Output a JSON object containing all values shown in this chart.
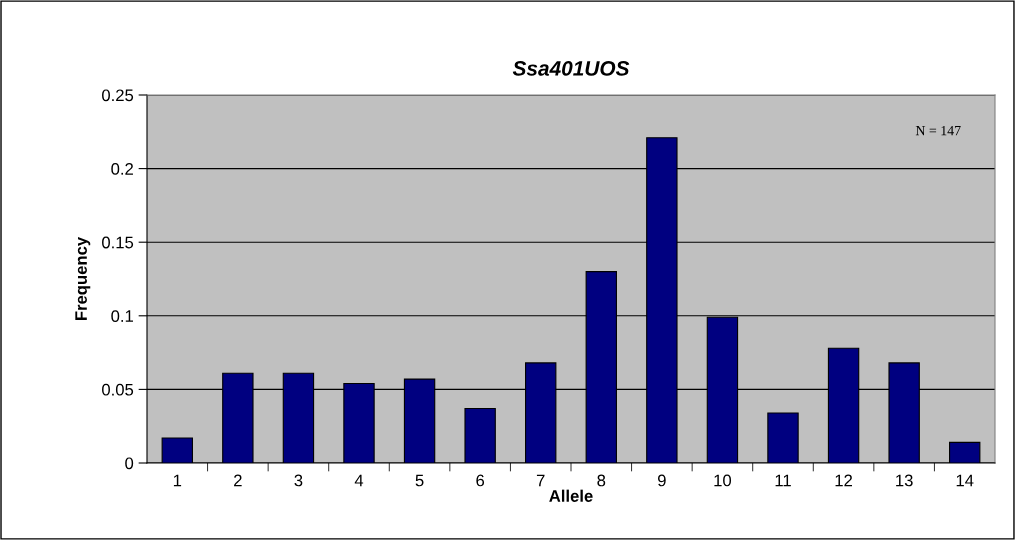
{
  "chart_data": {
    "type": "bar",
    "title": "Ssa401UOS",
    "xlabel": "Allele",
    "ylabel": "Frequency",
    "categories": [
      "1",
      "2",
      "3",
      "4",
      "5",
      "6",
      "7",
      "8",
      "9",
      "10",
      "11",
      "12",
      "13",
      "14"
    ],
    "values": [
      0.017,
      0.061,
      0.061,
      0.054,
      0.057,
      0.037,
      0.068,
      0.13,
      0.221,
      0.099,
      0.034,
      0.078,
      0.068,
      0.014
    ],
    "color": "#000080",
    "ylim": [
      0,
      0.25
    ],
    "yticks": [
      {
        "value": 0,
        "label": "0"
      },
      0.05,
      0.1,
      0.15,
      0.2,
      0.25
    ],
    "grid": "y",
    "legend": false,
    "annotations": [
      "N = 147"
    ]
  }
}
